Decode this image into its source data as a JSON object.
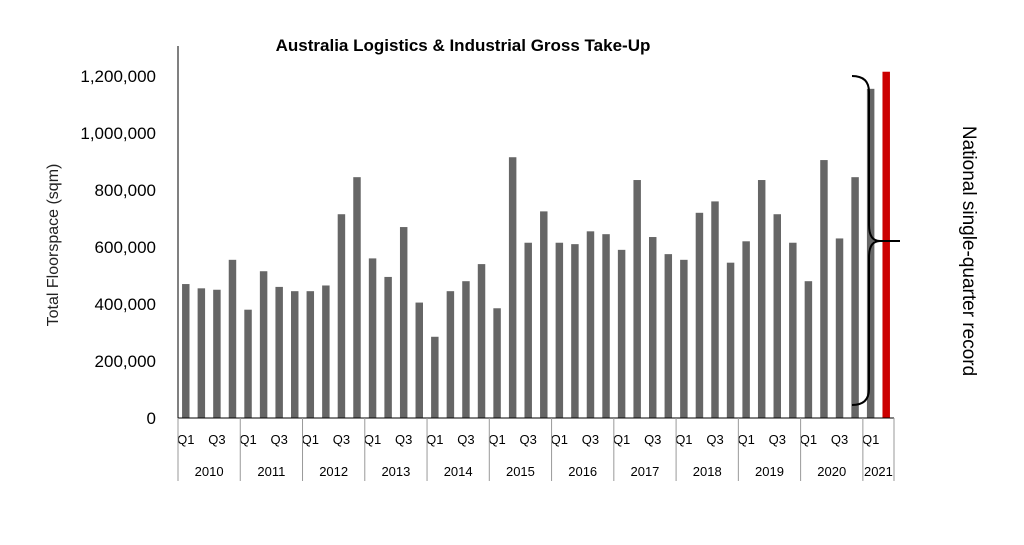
{
  "chart_data": {
    "type": "bar",
    "title": "Australia Logistics & Industrial Gross Take-Up",
    "ylabel": "Total Floorspace (sqm)",
    "xlabel": "",
    "ylim": [
      0,
      1200000
    ],
    "yticks": [
      "0",
      "200,000",
      "400,000",
      "600,000",
      "800,000",
      "1,000,000",
      "1,200,000"
    ],
    "ytick_values": [
      0,
      200000,
      400000,
      600000,
      800000,
      1000000,
      1200000
    ],
    "years": [
      "2010",
      "2011",
      "2012",
      "2013",
      "2014",
      "2015",
      "2016",
      "2017",
      "2018",
      "2019",
      "2020",
      "2021"
    ],
    "quarter_tick_labels": [
      "Q1",
      "Q3"
    ],
    "categories": [
      "2010 Q1",
      "2010 Q2",
      "2010 Q3",
      "2010 Q4",
      "2011 Q1",
      "2011 Q2",
      "2011 Q3",
      "2011 Q4",
      "2012 Q1",
      "2012 Q2",
      "2012 Q3",
      "2012 Q4",
      "2013 Q1",
      "2013 Q2",
      "2013 Q3",
      "2013 Q4",
      "2014 Q1",
      "2014 Q2",
      "2014 Q3",
      "2014 Q4",
      "2015 Q1",
      "2015 Q2",
      "2015 Q3",
      "2015 Q4",
      "2016 Q1",
      "2016 Q2",
      "2016 Q3",
      "2016 Q4",
      "2017 Q1",
      "2017 Q2",
      "2017 Q3",
      "2017 Q4",
      "2018 Q1",
      "2018 Q2",
      "2018 Q3",
      "2018 Q4",
      "2019 Q1",
      "2019 Q2",
      "2019 Q3",
      "2019 Q4",
      "2020 Q1",
      "2020 Q2",
      "2020 Q3",
      "2020 Q4",
      "2021 Q1",
      "2021 Q2"
    ],
    "values": [
      470000,
      455000,
      450000,
      555000,
      380000,
      515000,
      460000,
      445000,
      445000,
      465000,
      715000,
      845000,
      560000,
      495000,
      670000,
      405000,
      285000,
      445000,
      480000,
      540000,
      385000,
      915000,
      615000,
      725000,
      615000,
      610000,
      655000,
      645000,
      590000,
      835000,
      635000,
      575000,
      555000,
      720000,
      760000,
      545000,
      620000,
      835000,
      715000,
      615000,
      480000,
      905000,
      630000,
      845000,
      1155000,
      1215000
    ],
    "highlight_index": 45,
    "bar_color": "#666666",
    "highlight_color": "#cc0000",
    "annotation": "National single-quarter record",
    "grid": false,
    "legend": "none"
  }
}
